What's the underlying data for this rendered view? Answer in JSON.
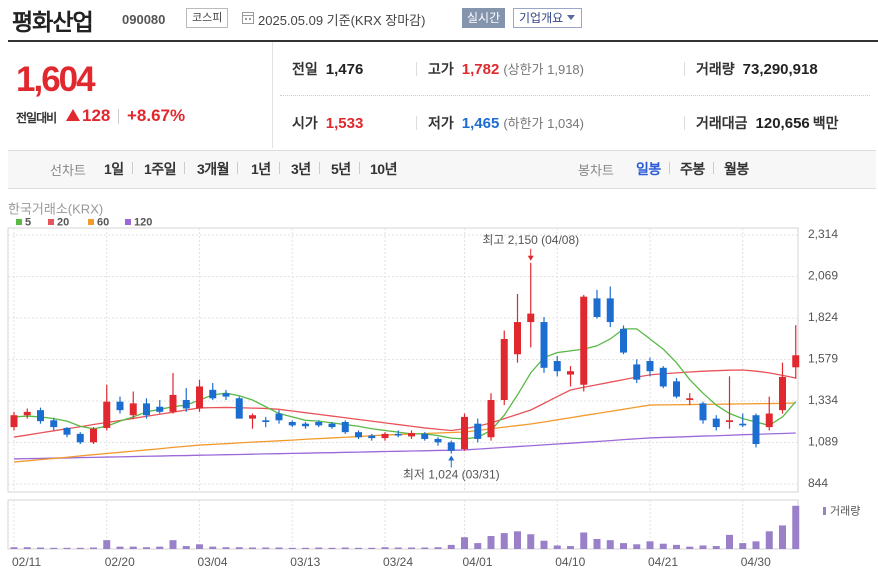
{
  "header": {
    "name": "평화산업",
    "code": "090080",
    "market": "코스피",
    "date": "2025.05.09 기준(KRX 장마감)",
    "realtime": "실시간",
    "company_info": "기업개요"
  },
  "quote": {
    "price": "1,604",
    "change_label": "전일대비",
    "change": "128",
    "change_rate": "+8.67%",
    "items": [
      {
        "label": "전일",
        "value": "1,476"
      },
      {
        "label": "고가",
        "value": "1,782",
        "note": "(상한가 1,918)"
      },
      {
        "label": "거래량",
        "value": "73,290,918"
      },
      {
        "label": "시가",
        "value": "1,533"
      },
      {
        "label": "저가",
        "value": "1,465",
        "note": "(하한가 1,034)"
      },
      {
        "label": "거래대금",
        "value": "120,656",
        "unit": "백만"
      }
    ]
  },
  "tabs": {
    "line_label": "선차트",
    "line_periods": [
      "1일",
      "1주일",
      "3개월",
      "1년",
      "3년",
      "5년",
      "10년"
    ],
    "candle_label": "봉차트",
    "candle_periods": [
      "일봉",
      "주봉",
      "월봉"
    ]
  },
  "chart_data": {
    "type": "candlestick",
    "source": "한국거래소(KRX)",
    "categories": [
      "02/11",
      null,
      null,
      null,
      null,
      null,
      null,
      "02/20",
      null,
      null,
      null,
      null,
      null,
      null,
      "03/04",
      null,
      null,
      null,
      null,
      null,
      null,
      "03/13",
      null,
      null,
      null,
      null,
      null,
      null,
      "03/24",
      null,
      null,
      null,
      null,
      null,
      "04/01",
      null,
      null,
      null,
      null,
      null,
      null,
      "04/10",
      null,
      null,
      null,
      null,
      null,
      null,
      "04/21",
      null,
      null,
      null,
      null,
      null,
      null,
      "04/30",
      null,
      null,
      null,
      null
    ],
    "open": [
      1180,
      1250,
      1280,
      1220,
      1175,
      1140,
      1090,
      1175,
      1330,
      1250,
      1320,
      1300,
      1270,
      1340,
      1290,
      1400,
      1380,
      1350,
      1230,
      1220,
      1260,
      1210,
      1200,
      1210,
      1200,
      1210,
      1150,
      1130,
      1115,
      1140,
      1125,
      1140,
      1110,
      1090,
      1050,
      1200,
      1120,
      1340,
      1610,
      1800,
      1800,
      1570,
      1490,
      1430,
      1940,
      1940,
      1760,
      1550,
      1570,
      1530,
      1450,
      1340,
      1320,
      1230,
      1210,
      1200,
      1250,
      1180,
      1280,
      1533
    ],
    "high": [
      1270,
      1290,
      1295,
      1235,
      1180,
      1150,
      1180,
      1430,
      1360,
      1390,
      1350,
      1340,
      1499,
      1410,
      1460,
      1440,
      1400,
      1360,
      1260,
      1240,
      1280,
      1220,
      1210,
      1220,
      1210,
      1220,
      1160,
      1140,
      1150,
      1160,
      1160,
      1150,
      1120,
      1100,
      1260,
      1230,
      1380,
      1750,
      1966,
      2150,
      1830,
      1600,
      1540,
      1960,
      1990,
      2010,
      1780,
      1580,
      1590,
      1540,
      1470,
      1380,
      1330,
      1250,
      1480,
      1260,
      1260,
      1360,
      1560,
      1782
    ],
    "low": [
      1160,
      1230,
      1200,
      1160,
      1120,
      1080,
      1080,
      1160,
      1260,
      1230,
      1230,
      1260,
      1260,
      1270,
      1270,
      1340,
      1340,
      1230,
      1170,
      1180,
      1200,
      1180,
      1170,
      1180,
      1170,
      1140,
      1110,
      1100,
      1100,
      1120,
      1110,
      1100,
      1070,
      1024,
      1040,
      1090,
      1100,
      1310,
      1560,
      1650,
      1500,
      1480,
      1420,
      1390,
      1820,
      1770,
      1610,
      1440,
      1480,
      1410,
      1350,
      1310,
      1200,
      1160,
      1170,
      1180,
      1060,
      1160,
      1260,
      1465
    ],
    "close": [
      1250,
      1270,
      1215,
      1180,
      1135,
      1090,
      1170,
      1330,
      1280,
      1320,
      1250,
      1270,
      1370,
      1290,
      1420,
      1350,
      1360,
      1230,
      1250,
      1210,
      1220,
      1190,
      1185,
      1190,
      1180,
      1150,
      1120,
      1115,
      1140,
      1130,
      1145,
      1110,
      1090,
      1040,
      1240,
      1110,
      1340,
      1700,
      1800,
      1850,
      1530,
      1510,
      1510,
      1950,
      1830,
      1800,
      1620,
      1460,
      1510,
      1420,
      1360,
      1350,
      1220,
      1180,
      1220,
      1190,
      1080,
      1260,
      1476,
      1604
    ],
    "up_color": "#e0282e",
    "down_color": "#1c6dd0",
    "series": [
      {
        "name": "5",
        "color": "#5ab946",
        "values": [
          1240,
          1245,
          1240,
          1230,
          1215,
          1185,
          1170,
          1185,
          1215,
          1240,
          1270,
          1285,
          1300,
          1310,
          1340,
          1370,
          1380,
          1365,
          1340,
          1300,
          1260,
          1240,
          1220,
          1215,
          1205,
          1195,
          1185,
          1170,
          1160,
          1150,
          1140,
          1140,
          1130,
          1115,
          1110,
          1120,
          1160,
          1250,
          1370,
          1500,
          1590,
          1620,
          1630,
          1640,
          1660,
          1700,
          1760,
          1760,
          1700,
          1640,
          1560,
          1460,
          1380,
          1310,
          1260,
          1230,
          1210,
          1190,
          1240,
          1330
        ]
      },
      {
        "name": "20",
        "color": "#e8545a",
        "values": [
          1121,
          1133,
          1146,
          1158,
          1170,
          1182,
          1195,
          1207,
          1219,
          1231,
          1244,
          1256,
          1268,
          1281,
          1293,
          1295,
          1296,
          1294,
          1292,
          1290,
          1285,
          1275,
          1265,
          1255,
          1245,
          1235,
          1225,
          1215,
          1205,
          1195,
          1185,
          1175,
          1167,
          1160,
          1170,
          1185,
          1205,
          1230,
          1255,
          1281,
          1320,
          1360,
          1399,
          1415,
          1430,
          1445,
          1460,
          1475,
          1488,
          1495,
          1500,
          1505,
          1510,
          1513,
          1516,
          1517,
          1510,
          1500,
          1485,
          1470
        ]
      },
      {
        "name": "60",
        "color": "#f29a2e",
        "values": [
          974,
          981,
          988,
          995,
          1002,
          1010,
          1017,
          1024,
          1031,
          1038,
          1045,
          1052,
          1060,
          1067,
          1074,
          1078,
          1082,
          1087,
          1091,
          1095,
          1099,
          1103,
          1108,
          1112,
          1116,
          1120,
          1124,
          1129,
          1133,
          1136,
          1139,
          1142,
          1145,
          1148,
          1151,
          1160,
          1170,
          1180,
          1189,
          1198,
          1210,
          1223,
          1235,
          1248,
          1260,
          1273,
          1285,
          1298,
          1310,
          1311,
          1312,
          1313,
          1314,
          1315,
          1316,
          1317,
          1318,
          1319,
          1320,
          1322
        ]
      },
      {
        "name": "120",
        "color": "#9b6ad8",
        "values": [
          992,
          994,
          995,
          997,
          998,
          1000,
          1001,
          1003,
          1004,
          1006,
          1008,
          1009,
          1011,
          1012,
          1014,
          1015,
          1017,
          1018,
          1020,
          1022,
          1023,
          1025,
          1026,
          1028,
          1029,
          1031,
          1032,
          1034,
          1036,
          1037,
          1039,
          1040,
          1042,
          1043,
          1045,
          1050,
          1055,
          1060,
          1065,
          1070,
          1075,
          1080,
          1085,
          1090,
          1095,
          1100,
          1106,
          1111,
          1116,
          1119,
          1121,
          1124,
          1127,
          1129,
          1132,
          1135,
          1137,
          1140,
          1142,
          1145
        ]
      }
    ],
    "ylim": [
      844,
      2314
    ],
    "yticks": [
      844,
      {
        "value": 1089,
        "label": "1,089"
      },
      {
        "value": 1334,
        "label": "1,334"
      },
      {
        "value": 1579,
        "label": "1,579"
      },
      {
        "value": 1824,
        "label": "1,824"
      },
      {
        "value": 2069,
        "label": "2,069"
      },
      {
        "value": 2314,
        "label": "2,314"
      }
    ],
    "grid": true,
    "annotations": [
      {
        "text": "최고 2,150 (04/08)",
        "value": 2150
      },
      {
        "text": "최저 1,024 (03/31)",
        "value": 1024
      }
    ],
    "volume": {
      "name": "거래량",
      "color": "#9a80c8",
      "ylim": [
        0,
        78000000
      ],
      "values": [
        3000000,
        3000000,
        2500000,
        2000000,
        2000000,
        2000000,
        2500000,
        15000000,
        4000000,
        4000000,
        3000000,
        4000000,
        15000000,
        5000000,
        8000000,
        4000000,
        3000000,
        3000000,
        2500000,
        2500000,
        2500000,
        2000000,
        2000000,
        2500000,
        2000000,
        2500000,
        2000000,
        2000000,
        3000000,
        2500000,
        2500000,
        2500000,
        3000000,
        7000000,
        20000000,
        10000000,
        22000000,
        27000000,
        30000000,
        25000000,
        14000000,
        6000000,
        5000000,
        28000000,
        17000000,
        15000000,
        10000000,
        8000000,
        13000000,
        9000000,
        7000000,
        4000000,
        6000000,
        5000000,
        24000000,
        10000000,
        13000000,
        30000000,
        40000000,
        73290918
      ]
    }
  }
}
